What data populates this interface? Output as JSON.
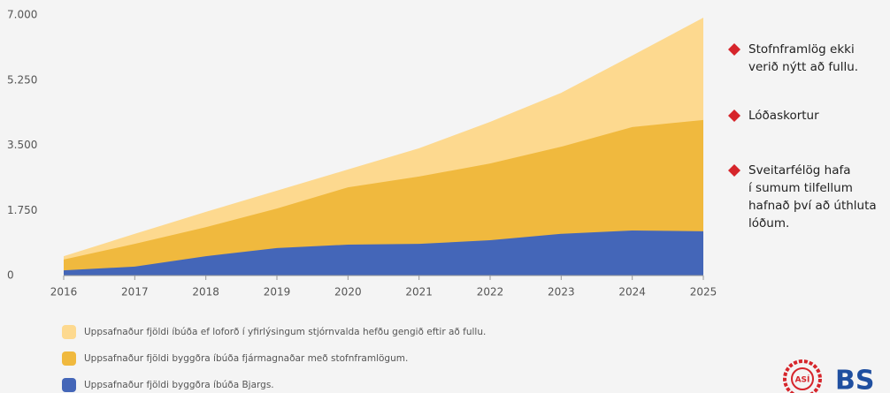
{
  "chart_data": {
    "type": "area",
    "x": [
      2016,
      2017,
      2018,
      2019,
      2020,
      2021,
      2022,
      2023,
      2024,
      2025
    ],
    "xlim": [
      2016,
      2025
    ],
    "xticks": [
      2016,
      2017,
      2018,
      2019,
      2020,
      2021,
      2022,
      2023,
      2024,
      2025
    ],
    "ylim": [
      0,
      7000
    ],
    "yticks": [
      0,
      {
        "value": 1750,
        "label": "1.750"
      },
      {
        "value": 3500,
        "label": "3.500"
      },
      {
        "value": 5250,
        "label": "5.250"
      },
      {
        "value": 7000,
        "label": "7.000"
      }
    ],
    "series": [
      {
        "name": "Uppsafnaður fjöldi íbúða ef loforð í yfirlýsingum stjórnvalda hefðu gengið eftir að fullu.",
        "color": "#fdd98f",
        "values": [
          520,
          1120,
          1710,
          2280,
          2850,
          3420,
          4130,
          4910,
          5910,
          6930
        ]
      },
      {
        "name": "Uppsafnaður fjöldi byggðra íbúða fjármagnaðar með stofnframlögum.",
        "color": "#f0b93e",
        "values": [
          430,
          850,
          1300,
          1800,
          2370,
          2660,
          3010,
          3460,
          3990,
          4180
        ]
      },
      {
        "name": "Uppsafnaður fjöldi byggðra íbúða Bjargs.",
        "color": "#4466b8",
        "values": [
          140,
          240,
          520,
          740,
          830,
          850,
          950,
          1120,
          1210,
          1190
        ]
      }
    ],
    "annotations": [
      [
        "Stofnframlög ekki",
        "verið nýtt að fullu."
      ],
      [
        "Lóðaskortur"
      ],
      [
        "Sveitarfélög hafa",
        "í sumum tilfellum",
        "hafnað því að úthluta",
        "lóðum."
      ]
    ],
    "logos": [
      "ASÍ",
      "BS"
    ]
  }
}
